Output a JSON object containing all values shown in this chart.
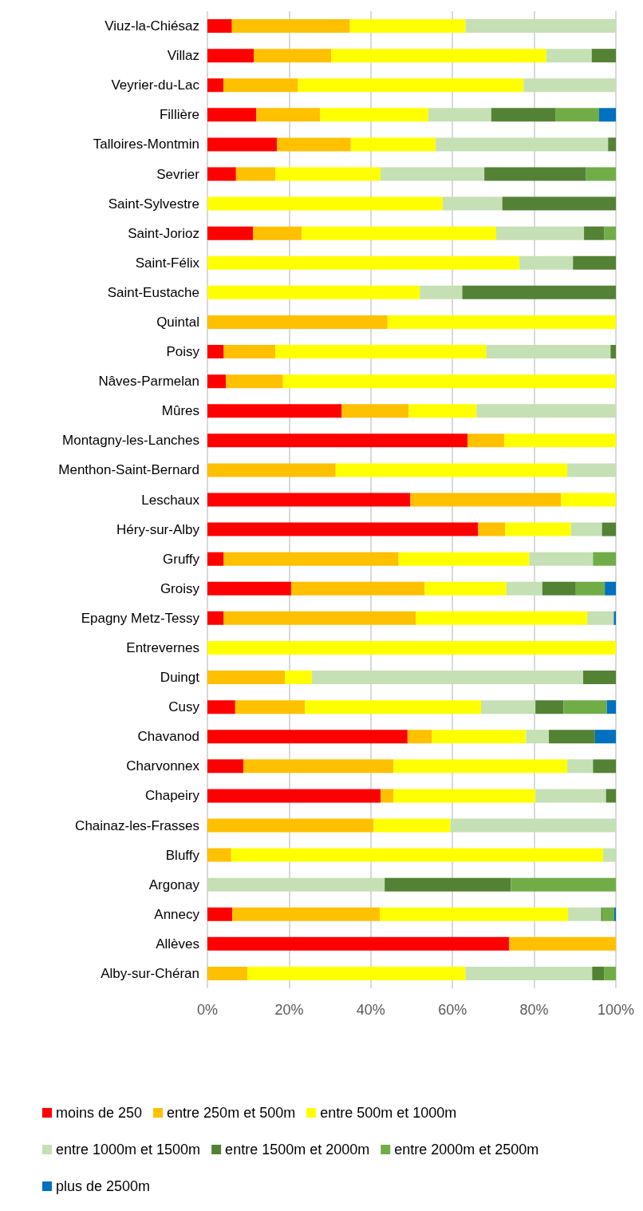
{
  "chart_data": {
    "type": "bar",
    "orientation": "horizontal",
    "stacked": true,
    "categories": [
      "Viuz-la-Chiésaz",
      "Villaz",
      "Veyrier-du-Lac",
      "Fillière",
      "Talloires-Montmin",
      "Sevrier",
      "Saint-Sylvestre",
      "Saint-Jorioz",
      "Saint-Félix",
      "Saint-Eustache",
      "Quintal",
      "Poisy",
      "Nâves-Parmelan",
      "Mûres",
      "Montagny-les-Lanches",
      "Menthon-Saint-Bernard",
      "Leschaux",
      "Héry-sur-Alby",
      "Gruffy",
      "Groisy",
      "Epagny Metz-Tessy",
      "Entrevernes",
      "Duingt",
      "Cusy",
      "Chavanod",
      "Charvonnex",
      "Chapeiry",
      "Chainaz-les-Frasses",
      "Bluffy",
      "Argonay",
      "Annecy",
      "Allèves",
      "Alby-sur-Chéran"
    ],
    "series": [
      {
        "name": "moins de 250",
        "color": "#ff0000",
        "values": [
          6.0,
          11.4,
          3.9,
          12.0,
          17.0,
          7.0,
          null,
          11.2,
          null,
          null,
          null,
          4.0,
          4.5,
          32.9,
          63.7,
          null,
          49.7,
          66.3,
          4.0,
          20.5,
          4.0,
          null,
          null,
          6.8,
          49.0,
          8.8,
          42.4,
          null,
          null,
          null,
          6.1,
          73.9,
          null
        ]
      },
      {
        "name": "entre 250m et 500m",
        "color": "#ffc000",
        "values": [
          28.9,
          18.9,
          18.3,
          15.6,
          18.1,
          9.6,
          null,
          11.9,
          null,
          null,
          44.1,
          12.6,
          14.0,
          16.4,
          9.0,
          31.4,
          36.9,
          6.6,
          42.8,
          32.7,
          47.0,
          null,
          19.0,
          17.1,
          6.0,
          36.8,
          3.2,
          40.7,
          5.8,
          null,
          36.1,
          26.1,
          9.8
        ]
      },
      {
        "name": "entre 500m et 1000m",
        "color": "#ffff00",
        "values": [
          28.3,
          52.7,
          55.2,
          26.5,
          20.8,
          25.8,
          57.6,
          47.6,
          76.4,
          52.0,
          55.9,
          51.7,
          81.5,
          16.6,
          27.3,
          56.7,
          13.4,
          16.1,
          32.0,
          20.0,
          42.0,
          100,
          6.6,
          43.1,
          23.0,
          42.5,
          34.7,
          18.8,
          91.1,
          null,
          46.1,
          null,
          53.4
        ]
      },
      {
        "name": "entre 1000m et 1500m",
        "color": "#c5e0b4",
        "values": [
          36.8,
          11.1,
          22.6,
          15.4,
          42.2,
          25.4,
          14.6,
          21.5,
          13.1,
          10.4,
          null,
          30.4,
          null,
          34.1,
          null,
          11.9,
          null,
          7.6,
          15.6,
          8.8,
          6.5,
          null,
          66.4,
          13.3,
          5.6,
          6.3,
          17.3,
          40.5,
          3.1,
          43.4,
          8.1,
          null,
          31.0
        ]
      },
      {
        "name": "entre 1500m et 2000m",
        "color": "#548235",
        "values": [
          null,
          5.9,
          null,
          15.8,
          1.9,
          24.9,
          27.8,
          4.9,
          10.5,
          37.6,
          null,
          1.3,
          null,
          null,
          null,
          null,
          null,
          3.4,
          null,
          8.2,
          null,
          null,
          8.0,
          6.9,
          11.3,
          5.6,
          2.4,
          null,
          null,
          30.9,
          0.3,
          null,
          3.0
        ]
      },
      {
        "name": "entre 2000m et 2500m",
        "color": "#70ad47",
        "values": [
          null,
          null,
          null,
          10.6,
          null,
          7.3,
          null,
          2.9,
          null,
          null,
          null,
          null,
          null,
          null,
          null,
          null,
          null,
          null,
          5.6,
          7.1,
          null,
          null,
          null,
          10.6,
          null,
          null,
          null,
          null,
          null,
          25.7,
          2.9,
          null,
          2.8
        ]
      },
      {
        "name": "plus de 2500m",
        "color": "#0070c0",
        "values": [
          null,
          null,
          null,
          4.1,
          null,
          null,
          null,
          null,
          null,
          null,
          null,
          null,
          null,
          null,
          null,
          null,
          null,
          null,
          null,
          2.7,
          0.5,
          null,
          null,
          2.2,
          5.1,
          null,
          null,
          null,
          null,
          null,
          0.4,
          null,
          null
        ]
      }
    ],
    "xlim": [
      0,
      100
    ],
    "xticks": [
      {
        "value": 0,
        "label": "0%"
      },
      {
        "value": 20,
        "label": "20%"
      },
      {
        "value": 40,
        "label": "40%"
      },
      {
        "value": 60,
        "label": "60%"
      },
      {
        "value": 80,
        "label": "80%"
      },
      {
        "value": 100,
        "label": "100%"
      }
    ],
    "grid": "x",
    "legend": "bottom"
  }
}
